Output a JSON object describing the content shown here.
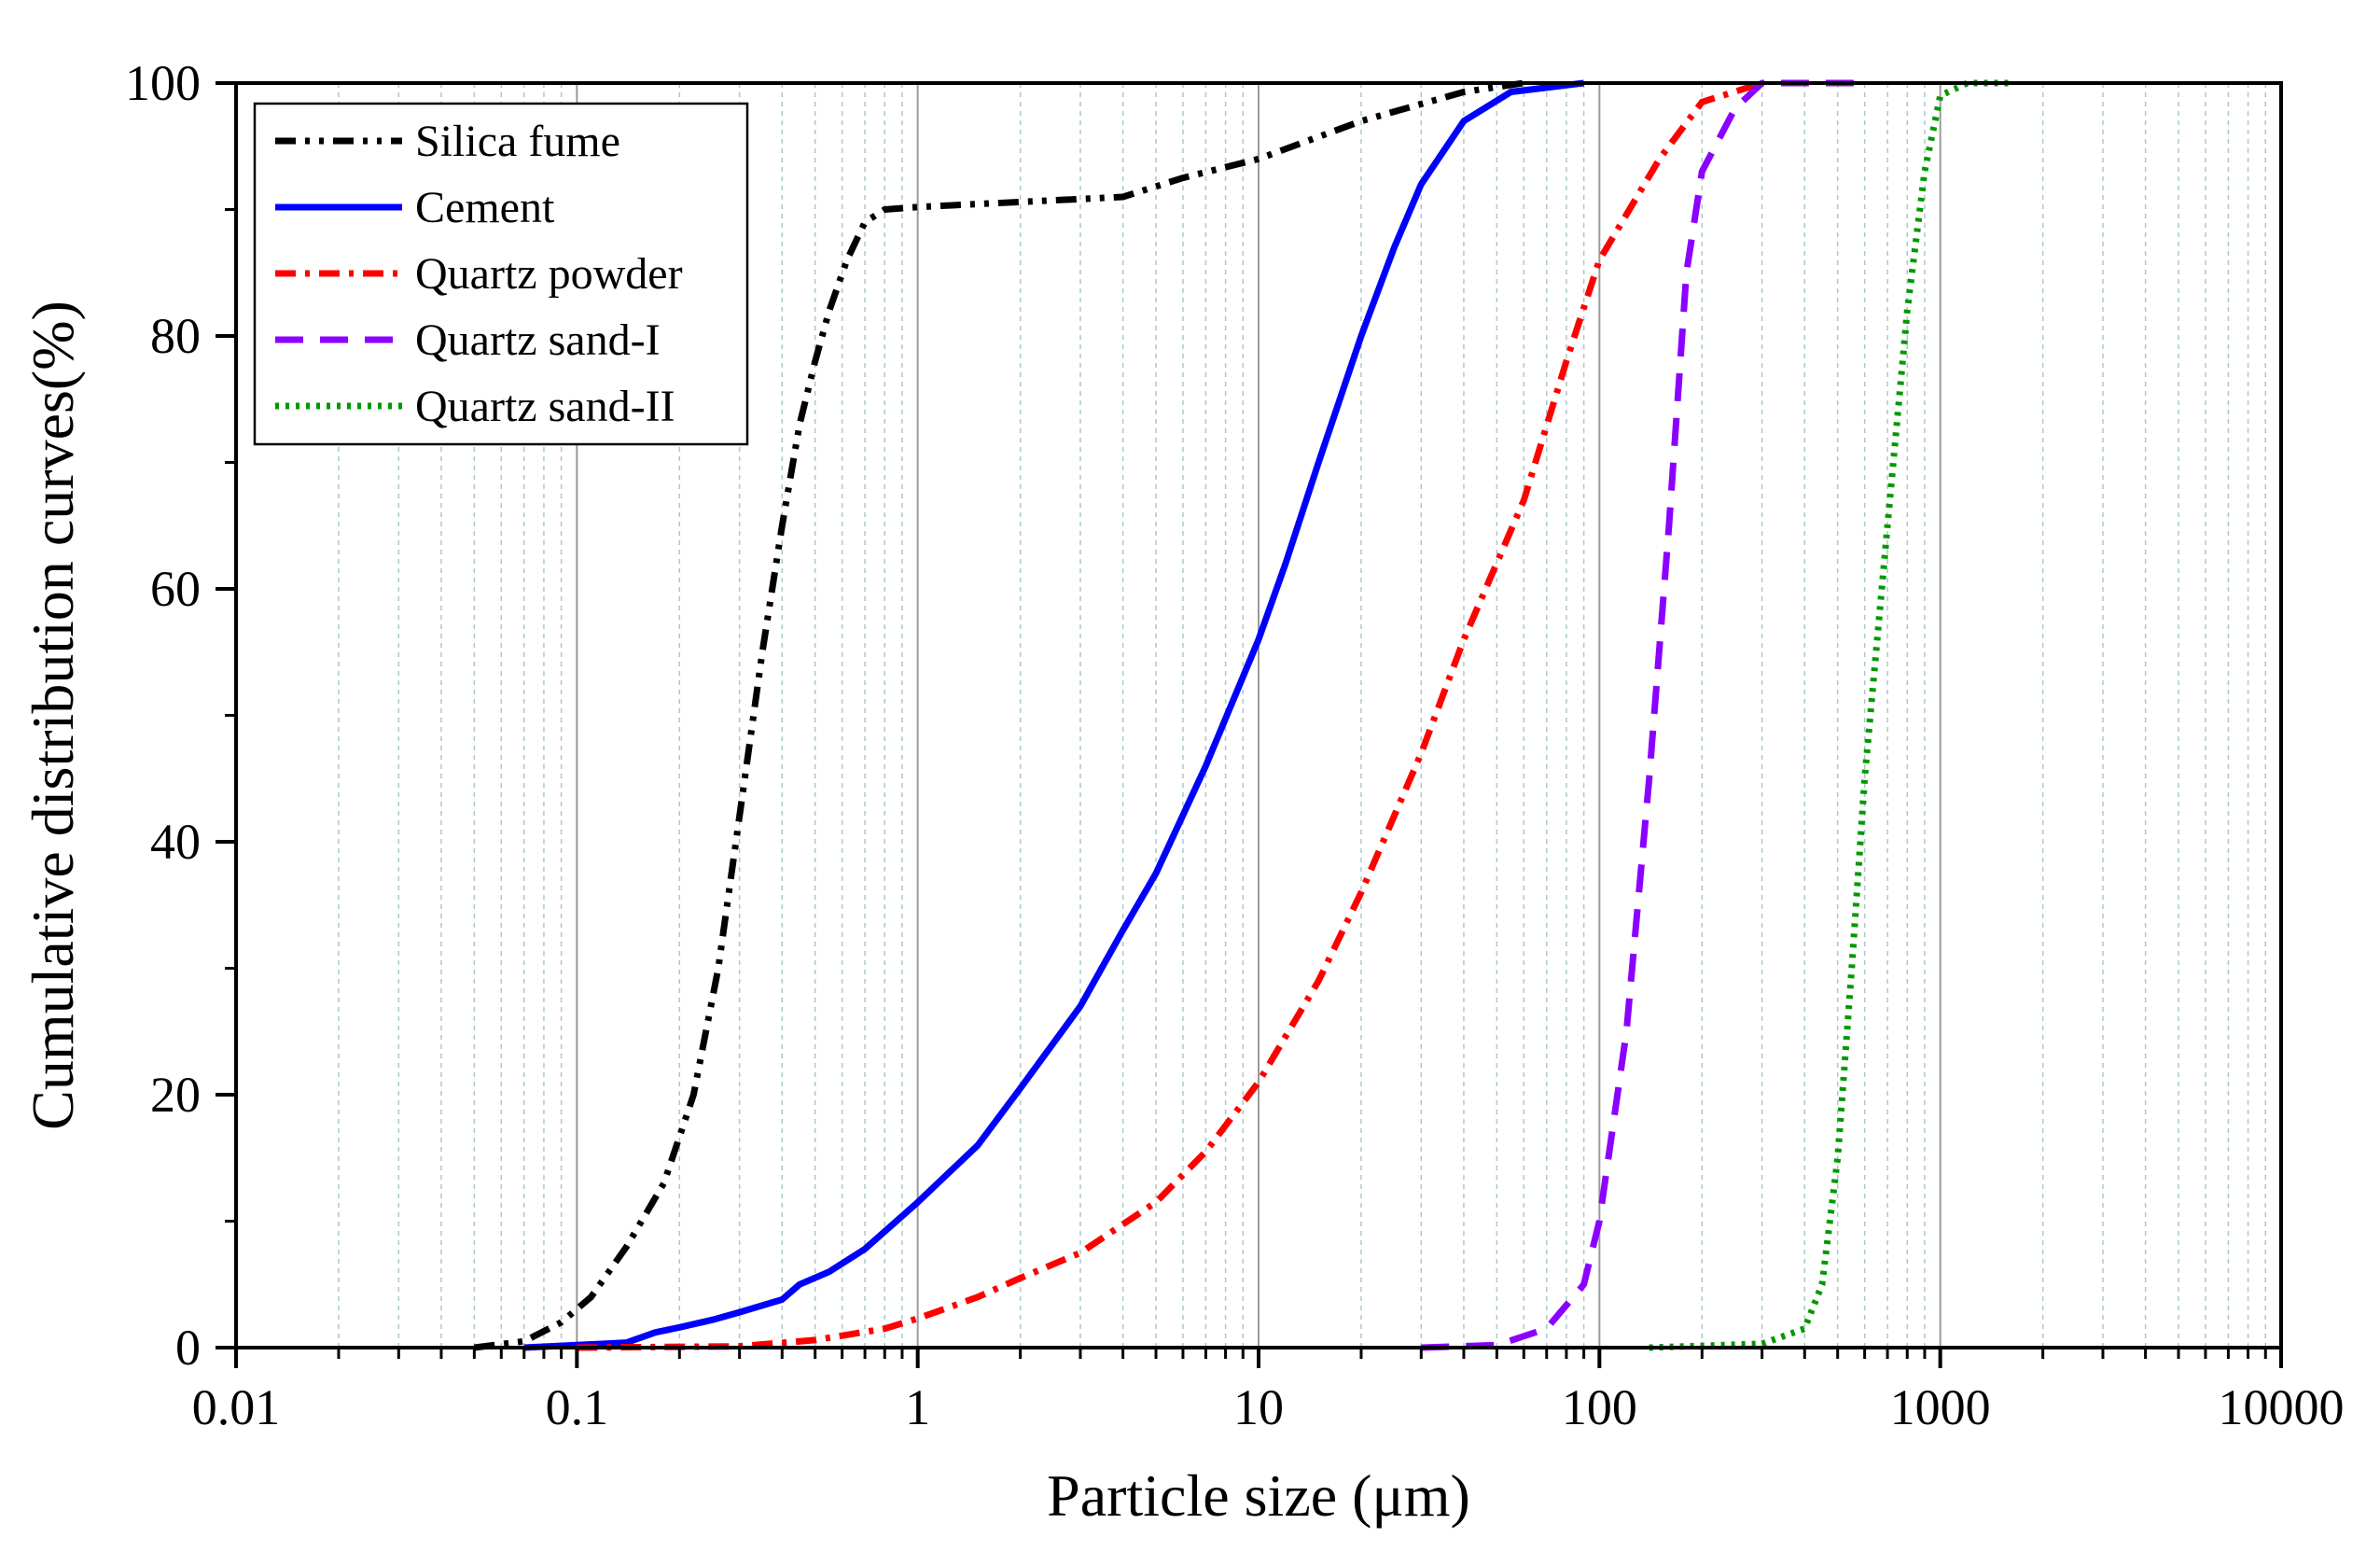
{
  "chart_data": {
    "type": "line",
    "title": "",
    "xlabel": "Particle size (μm)",
    "ylabel": "Cumulative distribution curves(%)",
    "xscale": "log",
    "xlim": [
      0.01,
      10000
    ],
    "ylim": [
      0,
      100
    ],
    "x_ticks": [
      0.01,
      0.1,
      1,
      10,
      100,
      1000,
      10000
    ],
    "x_tick_labels": [
      "0.01",
      "0.1",
      "1",
      "10",
      "100",
      "1000",
      "10000"
    ],
    "y_ticks": [
      0,
      20,
      40,
      60,
      80,
      100
    ],
    "y_tick_labels": [
      "0",
      "20",
      "40",
      "60",
      "80",
      "100"
    ],
    "grid": "vertical, major and minor",
    "legend_position": "top-left",
    "series": [
      {
        "name": "Silica fume",
        "color": "#000000",
        "dash": "dash-dot-dot",
        "points": [
          [
            0.05,
            0
          ],
          [
            0.07,
            0.5
          ],
          [
            0.09,
            2
          ],
          [
            0.11,
            4
          ],
          [
            0.14,
            8
          ],
          [
            0.18,
            13
          ],
          [
            0.22,
            20
          ],
          [
            0.26,
            30
          ],
          [
            0.3,
            42
          ],
          [
            0.35,
            55
          ],
          [
            0.4,
            65
          ],
          [
            0.45,
            73
          ],
          [
            0.5,
            78
          ],
          [
            0.55,
            82
          ],
          [
            0.62,
            86
          ],
          [
            0.7,
            89
          ],
          [
            0.8,
            90
          ],
          [
            1,
            90.2
          ],
          [
            2,
            90.6
          ],
          [
            4,
            91
          ],
          [
            6,
            92.5
          ],
          [
            10,
            94
          ],
          [
            20,
            97
          ],
          [
            40,
            99.3
          ],
          [
            60,
            100
          ]
        ]
      },
      {
        "name": "Cement",
        "color": "#0000ff",
        "dash": "solid",
        "points": [
          [
            0.07,
            0
          ],
          [
            0.1,
            0.2
          ],
          [
            0.14,
            0.4
          ],
          [
            0.17,
            1.2
          ],
          [
            0.2,
            1.6
          ],
          [
            0.25,
            2.2
          ],
          [
            0.3,
            2.8
          ],
          [
            0.4,
            3.8
          ],
          [
            0.45,
            5
          ],
          [
            0.55,
            6
          ],
          [
            0.7,
            7.8
          ],
          [
            1,
            11.5
          ],
          [
            1.5,
            16
          ],
          [
            2,
            20.5
          ],
          [
            3,
            27
          ],
          [
            4,
            33
          ],
          [
            5,
            37.5
          ],
          [
            7,
            46
          ],
          [
            10,
            56
          ],
          [
            12,
            62
          ],
          [
            15,
            70
          ],
          [
            20,
            80
          ],
          [
            25,
            87
          ],
          [
            30,
            92
          ],
          [
            40,
            97
          ],
          [
            55,
            99.3
          ],
          [
            90,
            100
          ]
        ]
      },
      {
        "name": "Quartz powder",
        "color": "#ff0000",
        "dash": "dash-dot",
        "points": [
          [
            0.1,
            0
          ],
          [
            0.3,
            0.1
          ],
          [
            0.5,
            0.6
          ],
          [
            0.8,
            1.5
          ],
          [
            1,
            2.3
          ],
          [
            1.5,
            4
          ],
          [
            2,
            5.5
          ],
          [
            3,
            7.5
          ],
          [
            5,
            11.5
          ],
          [
            7,
            15.5
          ],
          [
            10,
            21
          ],
          [
            15,
            29
          ],
          [
            20,
            36
          ],
          [
            30,
            47
          ],
          [
            40,
            56
          ],
          [
            60,
            67
          ],
          [
            80,
            78
          ],
          [
            100,
            86
          ],
          [
            150,
            94
          ],
          [
            200,
            98.5
          ],
          [
            300,
            100
          ]
        ]
      },
      {
        "name": "Quartz sand-I",
        "color": "#8b00ff",
        "dash": "long-dash",
        "points": [
          [
            30,
            0
          ],
          [
            50,
            0.2
          ],
          [
            70,
            1.5
          ],
          [
            90,
            5
          ],
          [
            100,
            10
          ],
          [
            120,
            25
          ],
          [
            140,
            45
          ],
          [
            160,
            65
          ],
          [
            180,
            85
          ],
          [
            200,
            93
          ],
          [
            250,
            98
          ],
          [
            300,
            100
          ],
          [
            600,
            100
          ]
        ]
      },
      {
        "name": "Quartz sand-II",
        "color": "#009900",
        "dash": "dotted",
        "points": [
          [
            140,
            0
          ],
          [
            300,
            0.3
          ],
          [
            400,
            1.5
          ],
          [
            450,
            5
          ],
          [
            500,
            15
          ],
          [
            550,
            30
          ],
          [
            600,
            45
          ],
          [
            700,
            65
          ],
          [
            800,
            82
          ],
          [
            900,
            93
          ],
          [
            1000,
            99
          ],
          [
            1200,
            100
          ],
          [
            1600,
            100
          ]
        ]
      }
    ]
  }
}
